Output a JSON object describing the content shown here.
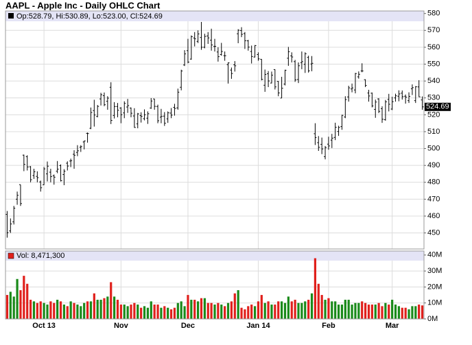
{
  "chart_data": {
    "type": "ohlc",
    "title": "AAPL - Apple Inc - Daily OHLC Chart",
    "header": "Op:528.79, Hi:530.89, Lo:523.00, Cl:524.69",
    "up_color": "#1a8a1a",
    "down_color": "#e0201c",
    "grid": true,
    "categories": [
      null,
      null,
      null,
      null,
      null,
      null,
      null,
      null,
      null,
      null,
      null,
      "Oct 13",
      null,
      null,
      null,
      null,
      null,
      null,
      null,
      null,
      null,
      null,
      null,
      null,
      null,
      null,
      null,
      null,
      null,
      null,
      null,
      null,
      null,
      null,
      "Nov",
      null,
      null,
      null,
      null,
      null,
      null,
      null,
      null,
      null,
      null,
      null,
      null,
      null,
      null,
      null,
      null,
      null,
      null,
      null,
      "Dec",
      null,
      null,
      null,
      null,
      null,
      null,
      null,
      null,
      null,
      null,
      null,
      null,
      null,
      null,
      null,
      null,
      null,
      null,
      null,
      null,
      "Jan 14",
      null,
      null,
      null,
      null,
      null,
      null,
      null,
      null,
      null,
      null,
      null,
      null,
      null,
      null,
      null,
      null,
      null,
      null,
      null,
      null,
      "Feb",
      null,
      null,
      null,
      null,
      null,
      null,
      null,
      null,
      null,
      null,
      null,
      null,
      null,
      null,
      null,
      null,
      null,
      null,
      "Mar",
      null,
      null,
      null,
      null,
      null,
      null,
      null,
      null,
      null
    ],
    "open": [
      461.0,
      451.2,
      456.6,
      470.0,
      478.6,
      496.1,
      495.2,
      489.2,
      484.0,
      483.5,
      480.2,
      478.5,
      485.0,
      486.0,
      483.9,
      486.6,
      489.9,
      484.6,
      491.3,
      492.6,
      496.6,
      497.7,
      500.8,
      503.9,
      509.0,
      512.0,
      522.5,
      519.0,
      529.4,
      531.3,
      528.0,
      536.3,
      519.6,
      524.9,
      524.0,
      521.1,
      524.6,
      524.0,
      519.3,
      514.6,
      519.5,
      517.7,
      518.0,
      524.0,
      529.4,
      524.9,
      518.6,
      519.2,
      517.6,
      521.0,
      524.4,
      524.1,
      536.3,
      549.5,
      558.0,
      553.0,
      565.5,
      563.5,
      565.8,
      560.0,
      566.7,
      564.2,
      560.5,
      557.2,
      555.7,
      555.0,
      549.7,
      546.5,
      549.6,
      568.0,
      569.9,
      568.1,
      563.8,
      557.5,
      554.2,
      555.7,
      552.9,
      537.5,
      544.3,
      538.8,
      546.8,
      539.8,
      529.9,
      538.2,
      553.5,
      554.9,
      551.5,
      540.9,
      550.9,
      549.9,
      554.0,
      550.1,
      508.8,
      503.5,
      502.5,
      495.2,
      502.6,
      505.0,
      506.6,
      510.1,
      513.0,
      518.7,
      530.6,
      535.3,
      534.7,
      542.5,
      546.0,
      540.8,
      532.9,
      532.8,
      523.2,
      529.4,
      523.6,
      517.1,
      529.1,
      523.4,
      530.0,
      531.0,
      532.8,
      531.0,
      528.4,
      535.4,
      528.4,
      536.5,
      528.79
    ],
    "high": [
      463.0,
      458.6,
      466.0,
      474.5,
      478.6,
      496.4,
      496.0,
      489.6,
      488.0,
      486.5,
      481.0,
      489.1,
      492.3,
      488.0,
      484.6,
      492.6,
      490.6,
      487.8,
      492.4,
      494.0,
      499.0,
      502.0,
      502.0,
      504.7,
      509.5,
      524.3,
      528.9,
      525.8,
      533.0,
      533.2,
      531.0,
      539.3,
      527.5,
      527.0,
      524.5,
      528.0,
      529.4,
      524.3,
      523.9,
      521.1,
      521.5,
      523.2,
      522.0,
      529.9,
      529.5,
      526.0,
      523.5,
      521.6,
      522.0,
      524.0,
      526.5,
      535.5,
      546.7,
      558.3,
      565.0,
      567.0,
      569.0,
      570.0,
      575.0,
      568.0,
      569.0,
      571.0,
      565.0,
      560.0,
      562.6,
      557.5,
      551.0,
      548.0,
      551.8,
      570.7,
      571.9,
      569.0,
      564.4,
      561.0,
      561.3,
      557.0,
      553.0,
      546.8,
      545.9,
      545.6,
      546.9,
      540.0,
      542.5,
      546.7,
      560.2,
      557.0,
      552.5,
      551.0,
      557.5,
      557.0,
      555.0,
      554.8,
      515.0,
      507.4,
      506.5,
      501.5,
      507.0,
      508.7,
      515.3,
      513.5,
      520.0,
      531.0,
      537.2,
      538.5,
      544.8,
      545.7,
      550.5,
      541.0,
      534.8,
      533.2,
      529.0,
      529.8,
      525.0,
      528.8,
      532.4,
      530.7,
      532.5,
      534.5,
      534.4,
      532.0,
      533.3,
      538.0,
      537.0,
      540.5,
      530.89
    ],
    "low": [
      447.2,
      450.0,
      455.0,
      466.7,
      466.0,
      486.6,
      487.0,
      480.0,
      482.0,
      480.0,
      474.5,
      478.4,
      480.5,
      480.0,
      478.6,
      485.4,
      480.5,
      478.3,
      487.0,
      489.0,
      488.0,
      495.5,
      498.0,
      499.5,
      503.5,
      511.5,
      513.0,
      518.5,
      525.5,
      525.1,
      523.0,
      514.5,
      517.8,
      518.5,
      515.0,
      518.0,
      521.1,
      518.5,
      512.3,
      512.0,
      515.4,
      516.7,
      514.6,
      523.5,
      523.0,
      515.0,
      515.0,
      513.4,
      515.2,
      518.0,
      519.5,
      523.0,
      534.5,
      548.9,
      550.5,
      552.6,
      560.5,
      562.5,
      558.5,
      559.4,
      562.0,
      558.0,
      557.5,
      551.5,
      555.0,
      552.0,
      538.5,
      541.3,
      545.6,
      562.4,
      566.0,
      559.0,
      558.0,
      550.4,
      554.0,
      552.0,
      540.4,
      533.6,
      536.4,
      538.6,
      535.0,
      531.0,
      529.9,
      537.4,
      549.0,
      551.0,
      539.5,
      538.8,
      547.0,
      544.8,
      545.0,
      545.8,
      502.1,
      498.6,
      496.7,
      493.6,
      499.3,
      500.3,
      505.0,
      507.5,
      511.1,
      518.0,
      527.8,
      533.3,
      532.7,
      541.4,
      545.2,
      536.4,
      527.8,
      524.4,
      518.2,
      521.0,
      515.2,
      516.5,
      522.0,
      522.8,
      527.8,
      528.0,
      529.0,
      526.6,
      527.0,
      531.7,
      527.0,
      530.5,
      523.0
    ],
    "close": [
      450.12,
      455.32,
      464.68,
      472.3,
      467.41,
      490.64,
      489.1,
      481.53,
      486.22,
      482.75,
      476.75,
      487.96,
      489.56,
      483.41,
      483.03,
      487.75,
      480.94,
      486.59,
      489.64,
      492.81,
      496.04,
      498.68,
      501.11,
      504.5,
      508.89,
      521.36,
      519.87,
      524.96,
      531.91,
      525.96,
      529.88,
      516.68,
      524.9,
      522.7,
      520.03,
      526.75,
      525.45,
      520.92,
      512.49,
      520.56,
      519.05,
      520.01,
      520.63,
      528.16,
      524.99,
      516.49,
      519.03,
      515.0,
      521.14,
      519.8,
      523.74,
      533.4,
      545.96,
      556.07,
      551.23,
      566.32,
      565.0,
      567.9,
      560.02,
      566.43,
      565.55,
      561.36,
      560.54,
      554.43,
      557.5,
      554.99,
      550.77,
      544.46,
      549.02,
      570.09,
      567.67,
      563.9,
      560.09,
      554.52,
      561.02,
      553.13,
      540.98,
      543.93,
      540.04,
      543.46,
      536.52,
      532.94,
      535.73,
      546.39,
      557.36,
      554.25,
      540.67,
      549.07,
      551.51,
      556.18,
      546.07,
      550.5,
      506.5,
      500.75,
      499.78,
      500.6,
      501.53,
      506.16,
      512.59,
      512.51,
      519.68,
      528.99,
      535.96,
      535.92,
      544.43,
      543.99,
      545.99,
      537.37,
      531.15,
      525.25,
      527.55,
      522.06,
      517.35,
      527.67,
      526.24,
      527.76,
      531.24,
      532.36,
      530.75,
      530.44,
      530.92,
      536.09,
      536.61,
      530.65,
      524.69
    ],
    "ylim": [
      440.5,
      581.5
    ],
    "yticks": [
      450,
      460,
      470,
      480,
      490,
      500,
      510,
      520,
      530,
      540,
      550,
      560,
      570,
      580
    ],
    "volume": {
      "label": "Vol: 8,471,300",
      "values": [
        15000000,
        17000000,
        14000000,
        25000000,
        18000000,
        27000000,
        22000000,
        12000000,
        11000000,
        10000000,
        11000000,
        10000000,
        9000000,
        11000000,
        10000000,
        12000000,
        11000000,
        9000000,
        8000000,
        11000000,
        10000000,
        9000000,
        8000000,
        10000000,
        11000000,
        11000000,
        16000000,
        12000000,
        12000000,
        13000000,
        14000000,
        23000000,
        14000000,
        12000000,
        9000000,
        9000000,
        8000000,
        9000000,
        10000000,
        9000000,
        7000000,
        8000000,
        7000000,
        11000000,
        9000000,
        9000000,
        7000000,
        8000000,
        7000000,
        6000000,
        7000000,
        10000000,
        11000000,
        8000000,
        15000000,
        12000000,
        12000000,
        11000000,
        13000000,
        13000000,
        10000000,
        10000000,
        9000000,
        10000000,
        9000000,
        8000000,
        10000000,
        11000000,
        16000000,
        18000000,
        7000000,
        6000000,
        8000000,
        9000000,
        8000000,
        11000000,
        15000000,
        10000000,
        11000000,
        9000000,
        9000000,
        11000000,
        11000000,
        10000000,
        14000000,
        11000000,
        12000000,
        10000000,
        10000000,
        11000000,
        12000000,
        16000000,
        38000000,
        22000000,
        15000000,
        12000000,
        13000000,
        11000000,
        11000000,
        9000000,
        9000000,
        12000000,
        12000000,
        9000000,
        10000000,
        10000000,
        11000000,
        10000000,
        9000000,
        9000000,
        9000000,
        10000000,
        8000000,
        10000000,
        9000000,
        12000000,
        9000000,
        8000000,
        7000000,
        7000000,
        6000000,
        8000000,
        8000000,
        9000000,
        8471300
      ],
      "ylim": [
        0,
        42500000
      ],
      "yticks": [
        {
          "value": 0,
          "label": "0M"
        },
        {
          "value": 10000000,
          "label": "10M"
        },
        {
          "value": 20000000,
          "label": "20M"
        },
        {
          "value": 30000000,
          "label": "30M"
        },
        {
          "value": 40000000,
          "label": "40M"
        }
      ]
    }
  }
}
